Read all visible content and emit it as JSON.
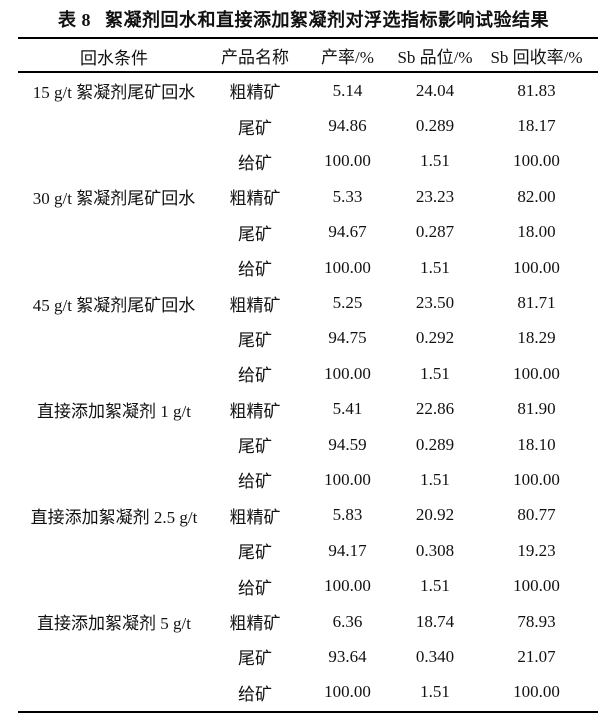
{
  "caption": {
    "label": "表 8",
    "title": "絮凝剂回水和直接添加絮凝剂对浮选指标影响试验结果"
  },
  "table": {
    "headers": [
      "回水条件",
      "产品名称",
      "产率/%",
      "Sb 品位/%",
      "Sb 回收率/%"
    ],
    "groups": [
      {
        "condition": "15 g/t 絮凝剂尾矿回水",
        "rows": [
          [
            "粗精矿",
            "5.14",
            "24.04",
            "81.83"
          ],
          [
            "尾矿",
            "94.86",
            "0.289",
            "18.17"
          ],
          [
            "给矿",
            "100.00",
            "1.51",
            "100.00"
          ]
        ]
      },
      {
        "condition": "30 g/t 絮凝剂尾矿回水",
        "rows": [
          [
            "粗精矿",
            "5.33",
            "23.23",
            "82.00"
          ],
          [
            "尾矿",
            "94.67",
            "0.287",
            "18.00"
          ],
          [
            "给矿",
            "100.00",
            "1.51",
            "100.00"
          ]
        ]
      },
      {
        "condition": "45 g/t 絮凝剂尾矿回水",
        "rows": [
          [
            "粗精矿",
            "5.25",
            "23.50",
            "81.71"
          ],
          [
            "尾矿",
            "94.75",
            "0.292",
            "18.29"
          ],
          [
            "给矿",
            "100.00",
            "1.51",
            "100.00"
          ]
        ]
      },
      {
        "condition": "直接添加絮凝剂 1 g/t",
        "rows": [
          [
            "粗精矿",
            "5.41",
            "22.86",
            "81.90"
          ],
          [
            "尾矿",
            "94.59",
            "0.289",
            "18.10"
          ],
          [
            "给矿",
            "100.00",
            "1.51",
            "100.00"
          ]
        ]
      },
      {
        "condition": "直接添加絮凝剂 2.5 g/t",
        "rows": [
          [
            "粗精矿",
            "5.83",
            "20.92",
            "80.77"
          ],
          [
            "尾矿",
            "94.17",
            "0.308",
            "19.23"
          ],
          [
            "给矿",
            "100.00",
            "1.51",
            "100.00"
          ]
        ]
      },
      {
        "condition": "直接添加絮凝剂 5 g/t",
        "rows": [
          [
            "粗精矿",
            "6.36",
            "18.74",
            "78.93"
          ],
          [
            "尾矿",
            "93.64",
            "0.340",
            "21.07"
          ],
          [
            "给矿",
            "100.00",
            "1.51",
            "100.00"
          ]
        ]
      }
    ]
  }
}
